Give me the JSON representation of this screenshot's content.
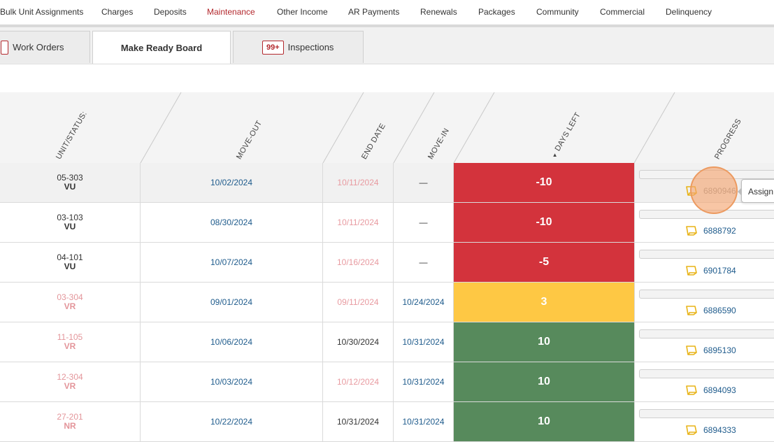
{
  "topnav": {
    "items": [
      {
        "label": "Bulk Unit Assignments",
        "active": false
      },
      {
        "label": "Charges",
        "active": false
      },
      {
        "label": "Deposits",
        "active": false
      },
      {
        "label": "Maintenance",
        "active": true
      },
      {
        "label": "Other Income",
        "active": false
      },
      {
        "label": "AR Payments",
        "active": false
      },
      {
        "label": "Renewals",
        "active": false
      },
      {
        "label": "Packages",
        "active": false
      },
      {
        "label": "Community",
        "active": false
      },
      {
        "label": "Commercial",
        "active": false
      },
      {
        "label": "Delinquency",
        "active": false
      }
    ]
  },
  "tabs": [
    {
      "label": "Work Orders",
      "badge": ""
    },
    {
      "label": "Make Ready Board",
      "badge": ""
    },
    {
      "label": "Inspections",
      "badge": "99+"
    }
  ],
  "table": {
    "headers": {
      "unit_status": "UNIT/STATUS:",
      "move_out": "MOVE-OUT",
      "end_date": "END DATE",
      "move_in": "MOVE-IN",
      "days_left": "DAYS LEFT",
      "progress": "PROGRESS",
      "sort_arrow": "▲"
    },
    "rows": [
      {
        "unit": "05-303",
        "status": "VU",
        "move_out": "10/02/2024",
        "end_date": "10/11/2024",
        "move_in": "—",
        "days_left": "-10",
        "work_order": "6890946",
        "progress": 0
      },
      {
        "unit": "03-103",
        "status": "VU",
        "move_out": "08/30/2024",
        "end_date": "10/11/2024",
        "move_in": "—",
        "days_left": "-10",
        "work_order": "6888792",
        "progress": 0
      },
      {
        "unit": "04-101",
        "status": "VU",
        "move_out": "10/07/2024",
        "end_date": "10/16/2024",
        "move_in": "—",
        "days_left": "-5",
        "work_order": "6901784",
        "progress": 0
      },
      {
        "unit": "03-304",
        "status": "VR",
        "move_out": "09/01/2024",
        "end_date": "09/11/2024",
        "move_in": "10/24/2024",
        "days_left": "3",
        "work_order": "6886590",
        "progress": 0
      },
      {
        "unit": "11-105",
        "status": "VR",
        "move_out": "10/06/2024",
        "end_date": "10/30/2024",
        "move_in": "10/31/2024",
        "days_left": "10",
        "work_order": "6895130",
        "progress": 0
      },
      {
        "unit": "12-304",
        "status": "VR",
        "move_out": "10/03/2024",
        "end_date": "10/12/2024",
        "move_in": "10/31/2024",
        "days_left": "10",
        "work_order": "6894093",
        "progress": 0
      },
      {
        "unit": "27-201",
        "status": "NR",
        "move_out": "10/22/2024",
        "end_date": "10/31/2024",
        "move_in": "10/31/2024",
        "days_left": "10",
        "work_order": "6894333",
        "progress": 0
      }
    ]
  },
  "tooltip": {
    "text": "Assign"
  },
  "colors": {
    "accent": "#b3282d",
    "link": "#1e5b8c",
    "days_red": "#d3333c",
    "days_yellow": "#fec844",
    "days_green": "#578a5c",
    "status_pink": "#e3959a",
    "workorder_icon": "#e8b316"
  },
  "icons": {
    "work_order": "notepad-icon"
  }
}
